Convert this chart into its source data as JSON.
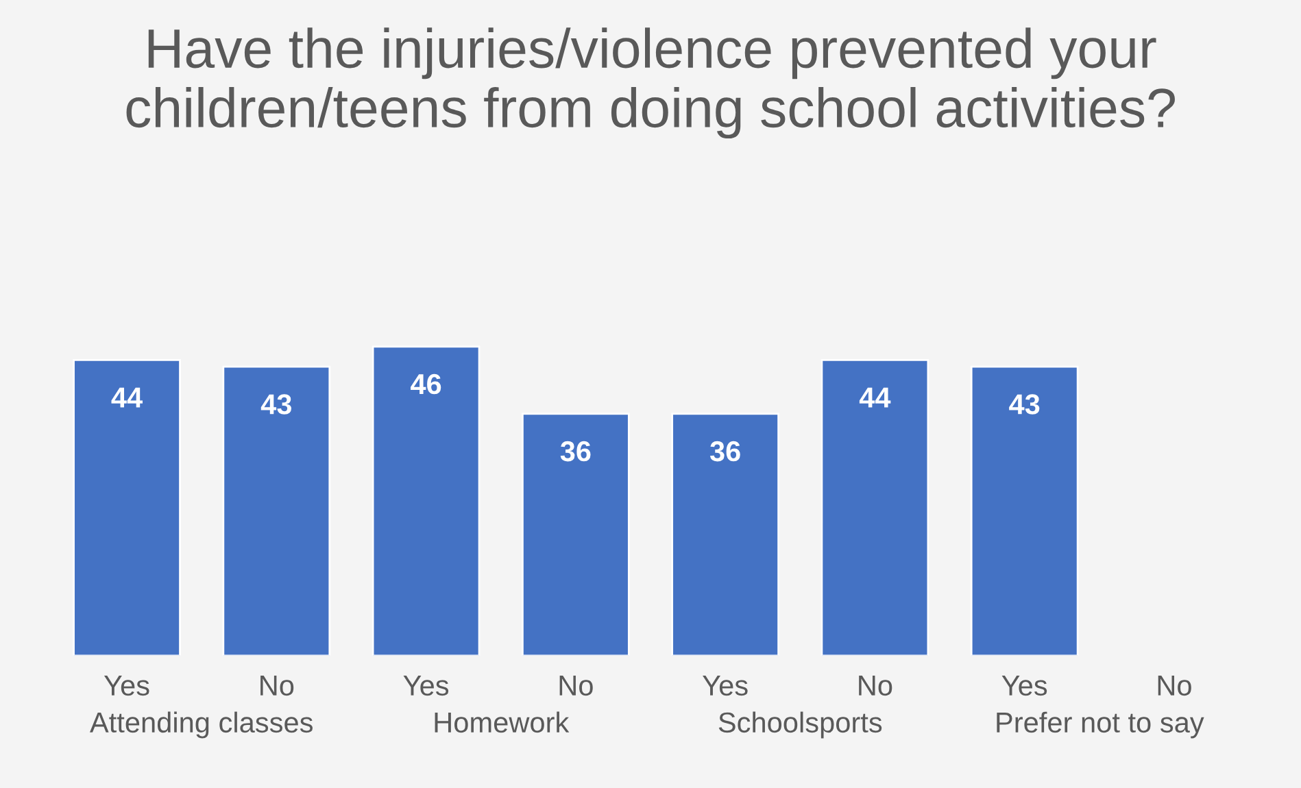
{
  "chart_data": {
    "type": "bar",
    "title": "Have the injuries/violence prevented your children/teens from doing school activities?",
    "categories": [
      "Yes",
      "No",
      "Yes",
      "No",
      "Yes",
      "No",
      "Yes",
      "No"
    ],
    "values": [
      44,
      43,
      46,
      36,
      36,
      44,
      43,
      null
    ],
    "color": "#4472c4",
    "data_labels": true,
    "annotations": [
      "Attending classes",
      "Homework",
      "Schoolsports",
      "Prefer not to say"
    ],
    "grid": false,
    "legend": false
  }
}
